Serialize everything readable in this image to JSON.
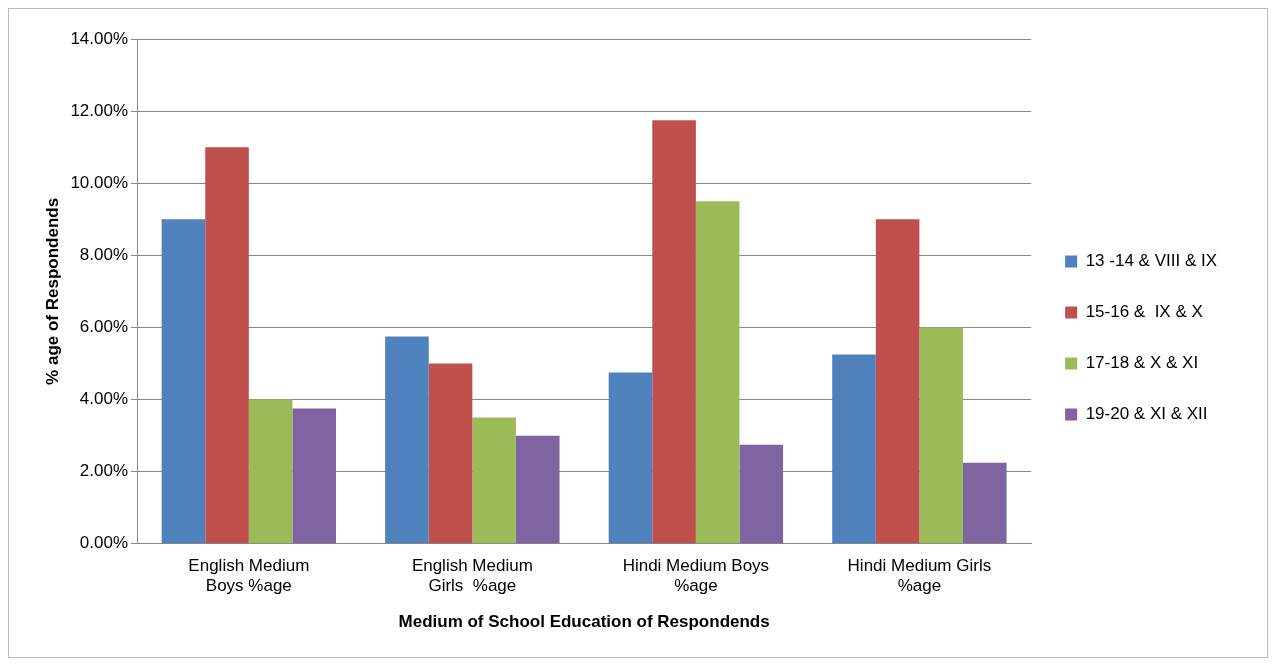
{
  "chart_data": {
    "type": "bar",
    "xlabel": "Medium of School Education of Respondends",
    "ylabel": "% age of Respondends",
    "categories": [
      "English Medium Boys %age",
      "English Medium Girls  %age",
      "Hindi Medium Boys %age",
      "Hindi Medium Girls %age"
    ],
    "series": [
      {
        "name": "13 -14 & VIII & IX",
        "color": "#4f81bd",
        "values": [
          9.0,
          5.75,
          4.75,
          5.25
        ]
      },
      {
        "name": "15-16 &  IX & X",
        "color": "#c0504d",
        "values": [
          11.0,
          5.0,
          11.75,
          9.0
        ]
      },
      {
        "name": "17-18 & X & XI",
        "color": "#9bbb59",
        "values": [
          4.0,
          3.5,
          9.5,
          6.0
        ]
      },
      {
        "name": "19-20 & XI & XII",
        "color": "#8064a2",
        "values": [
          3.75,
          3.0,
          2.75,
          2.25
        ]
      }
    ],
    "ylim": [
      0,
      14
    ],
    "yticks": [
      {
        "value": 0,
        "label": "0.00%"
      },
      {
        "value": 2,
        "label": "2.00%"
      },
      {
        "value": 4,
        "label": "4.00%"
      },
      {
        "value": 6,
        "label": "6.00%"
      },
      {
        "value": 8,
        "label": "8.00%"
      },
      {
        "value": 10,
        "label": "10.00%"
      },
      {
        "value": 12,
        "label": "12.00%"
      },
      {
        "value": 14,
        "label": "14.00%"
      }
    ],
    "grid": "y",
    "legend": "right"
  }
}
